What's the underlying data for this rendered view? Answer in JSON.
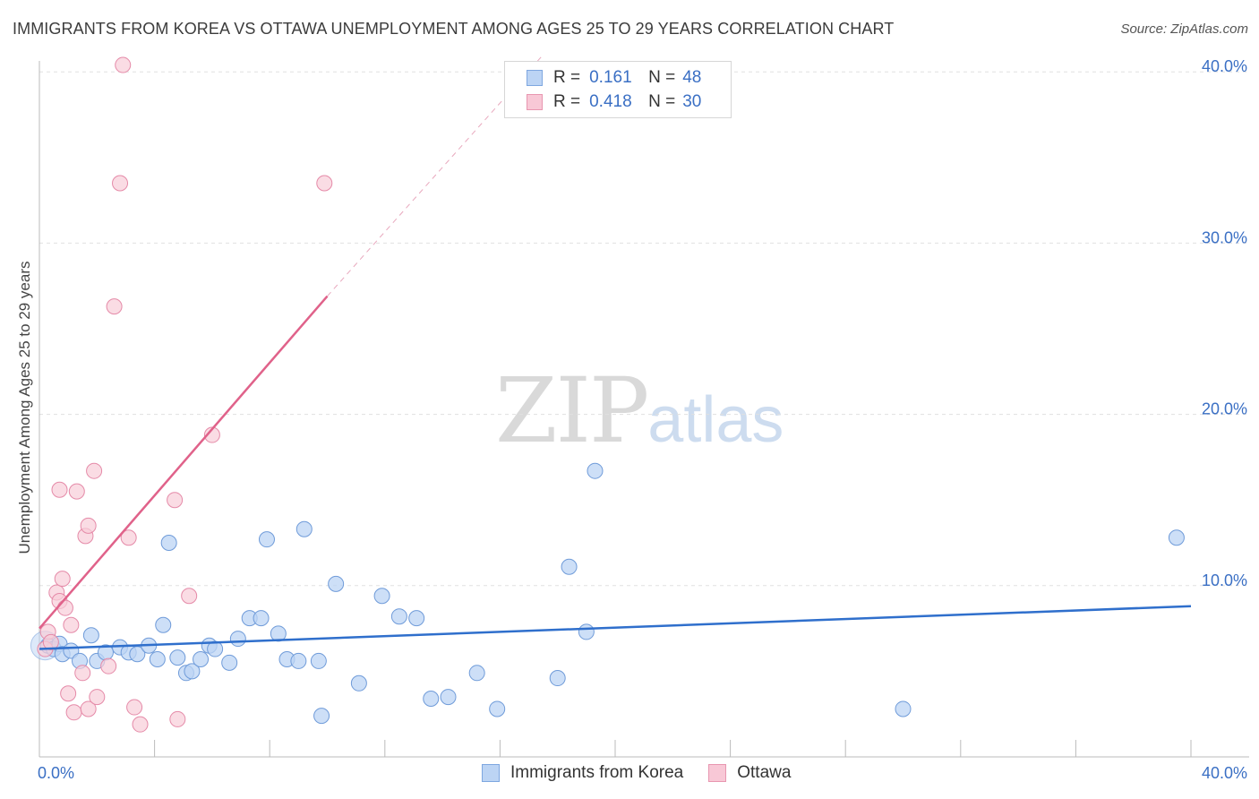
{
  "title": "IMMIGRANTS FROM KOREA VS OTTAWA UNEMPLOYMENT AMONG AGES 25 TO 29 YEARS CORRELATION CHART",
  "source": "Source: ZipAtlas.com",
  "watermark": {
    "zip": "ZIP",
    "atlas": "atlas"
  },
  "legend": {
    "r_label": "R =",
    "n_label": "N =",
    "rows": [
      {
        "r": "0.161",
        "n": "48",
        "fill": "#bcd4f4",
        "stroke": "#7ea7e0"
      },
      {
        "r": "0.418",
        "n": "30",
        "fill": "#f8c8d6",
        "stroke": "#e896b0"
      }
    ]
  },
  "colors": {
    "blue_fill": "#bcd4f4",
    "blue_stroke": "#6f9bd9",
    "blue_line": "#2f6fcc",
    "pink_fill": "#f8cdd9",
    "pink_stroke": "#e58aa8",
    "pink_line": "#e0628a",
    "tick_label": "#3a6fc4",
    "grid": "#e0e0e0"
  },
  "chart_data": {
    "type": "scatter",
    "title": "IMMIGRANTS FROM KOREA VS OTTAWA UNEMPLOYMENT AMONG AGES 25 TO 29 YEARS CORRELATION CHART",
    "xlabel": "",
    "ylabel": "Unemployment Among Ages 25 to 29 years",
    "xlim": [
      0,
      42
    ],
    "ylim": [
      0,
      41
    ],
    "x_tick_labels": [
      "0.0%",
      "40.0%"
    ],
    "y_ticks": [
      10,
      20,
      30,
      40
    ],
    "y_tick_labels": [
      "10.0%",
      "20.0%",
      "30.0%",
      "40.0%"
    ],
    "grid": true,
    "legend_position": "bottom",
    "series": [
      {
        "name": "Immigrants from Korea",
        "color": "#6f9bd9",
        "trend": {
          "x": [
            0,
            40
          ],
          "y": [
            6.3,
            8.8
          ]
        },
        "points": [
          [
            0.3,
            6.5
          ],
          [
            0.5,
            6.3
          ],
          [
            0.7,
            6.6
          ],
          [
            0.8,
            6.0
          ],
          [
            1.1,
            6.2
          ],
          [
            1.4,
            5.6
          ],
          [
            1.8,
            7.1
          ],
          [
            2.0,
            5.6
          ],
          [
            2.3,
            6.1
          ],
          [
            2.8,
            6.4
          ],
          [
            3.1,
            6.1
          ],
          [
            3.4,
            6.0
          ],
          [
            3.8,
            6.5
          ],
          [
            4.1,
            5.7
          ],
          [
            4.3,
            7.7
          ],
          [
            4.5,
            12.5
          ],
          [
            4.8,
            5.8
          ],
          [
            5.1,
            4.9
          ],
          [
            5.3,
            5.0
          ],
          [
            5.6,
            5.7
          ],
          [
            5.9,
            6.5
          ],
          [
            6.1,
            6.3
          ],
          [
            6.6,
            5.5
          ],
          [
            6.9,
            6.9
          ],
          [
            7.3,
            8.1
          ],
          [
            7.7,
            8.1
          ],
          [
            7.9,
            12.7
          ],
          [
            8.3,
            7.2
          ],
          [
            8.6,
            5.7
          ],
          [
            9.0,
            5.6
          ],
          [
            9.2,
            13.3
          ],
          [
            9.7,
            5.6
          ],
          [
            9.8,
            2.4
          ],
          [
            10.3,
            10.1
          ],
          [
            11.1,
            4.3
          ],
          [
            11.9,
            9.4
          ],
          [
            12.5,
            8.2
          ],
          [
            13.1,
            8.1
          ],
          [
            13.6,
            3.4
          ],
          [
            14.2,
            3.5
          ],
          [
            15.2,
            4.9
          ],
          [
            15.9,
            2.8
          ],
          [
            18.0,
            4.6
          ],
          [
            18.4,
            11.1
          ],
          [
            19.0,
            7.3
          ],
          [
            19.3,
            16.7
          ],
          [
            30.0,
            2.8
          ],
          [
            39.5,
            12.8
          ]
        ]
      },
      {
        "name": "Ottawa",
        "color": "#e58aa8",
        "trend": {
          "x": [
            0,
            10.0
          ],
          "y": [
            7.5,
            26.9
          ],
          "dashed_to": [
            17.5,
            41.0
          ]
        },
        "points": [
          [
            0.2,
            6.3
          ],
          [
            0.3,
            7.3
          ],
          [
            0.4,
            6.7
          ],
          [
            0.6,
            9.6
          ],
          [
            0.7,
            9.1
          ],
          [
            0.7,
            15.6
          ],
          [
            0.8,
            10.4
          ],
          [
            0.9,
            8.7
          ],
          [
            1.0,
            3.7
          ],
          [
            1.1,
            7.7
          ],
          [
            1.2,
            2.6
          ],
          [
            1.3,
            15.5
          ],
          [
            1.5,
            4.9
          ],
          [
            1.6,
            12.9
          ],
          [
            1.7,
            2.8
          ],
          [
            1.7,
            13.5
          ],
          [
            1.9,
            16.7
          ],
          [
            2.0,
            3.5
          ],
          [
            2.4,
            5.3
          ],
          [
            2.6,
            26.3
          ],
          [
            2.8,
            33.5
          ],
          [
            2.9,
            40.4
          ],
          [
            3.1,
            12.8
          ],
          [
            3.3,
            2.9
          ],
          [
            3.5,
            1.9
          ],
          [
            4.7,
            15.0
          ],
          [
            4.8,
            2.2
          ],
          [
            5.2,
            9.4
          ],
          [
            6.0,
            18.8
          ],
          [
            9.9,
            33.5
          ]
        ]
      }
    ]
  },
  "bottom_legend": [
    {
      "label": "Immigrants from Korea",
      "fill": "#bcd4f4",
      "stroke": "#7ea7e0"
    },
    {
      "label": "Ottawa",
      "fill": "#f8c8d6",
      "stroke": "#e896b0"
    }
  ]
}
